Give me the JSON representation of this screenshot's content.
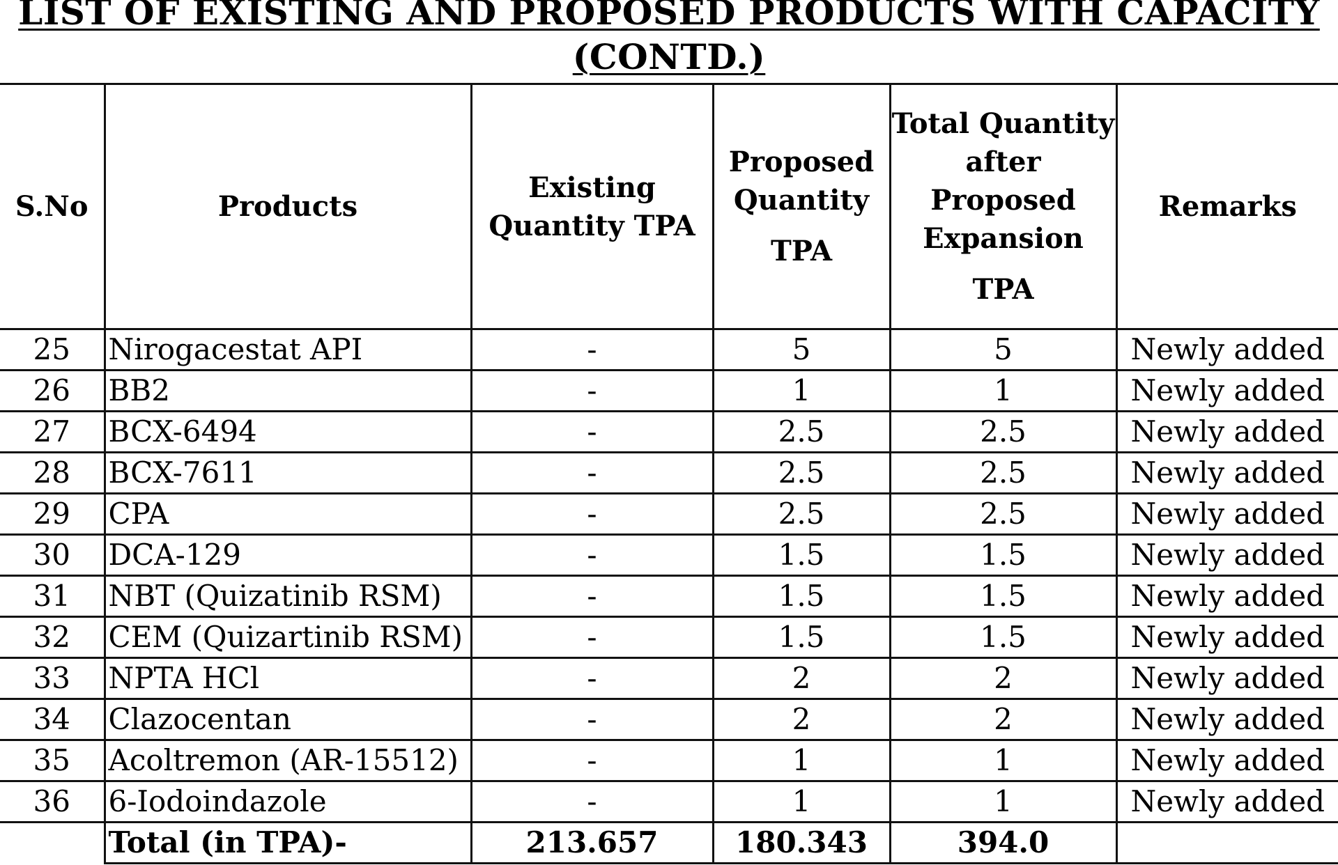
{
  "document": {
    "title_line1": "LIST OF EXISTING AND PROPOSED PRODUCTS WITH CAPACITY",
    "title_line2": "(CONTD.)"
  },
  "table": {
    "headers": {
      "sno": "S.No",
      "products": "Products",
      "existing": "Existing Quantity TPA",
      "proposed_a": "Proposed Quantity",
      "proposed_b": "TPA",
      "total_a": "Total Quantity after Proposed Expansion",
      "total_b": "TPA",
      "remarks": "Remarks"
    },
    "rows": [
      {
        "sno": "25",
        "product": "Nirogacestat API",
        "existing": "-",
        "proposed": "5",
        "total": "5",
        "remarks": "Newly added"
      },
      {
        "sno": "26",
        "product": "BB2",
        "existing": "-",
        "proposed": "1",
        "total": "1",
        "remarks": "Newly added"
      },
      {
        "sno": "27",
        "product": "BCX-6494",
        "existing": "-",
        "proposed": "2.5",
        "total": "2.5",
        "remarks": "Newly added"
      },
      {
        "sno": "28",
        "product": "BCX-7611",
        "existing": "-",
        "proposed": "2.5",
        "total": "2.5",
        "remarks": "Newly added"
      },
      {
        "sno": "29",
        "product": "CPA",
        "existing": "-",
        "proposed": "2.5",
        "total": "2.5",
        "remarks": "Newly added"
      },
      {
        "sno": "30",
        "product": "DCA-129",
        "existing": "-",
        "proposed": "1.5",
        "total": "1.5",
        "remarks": "Newly added"
      },
      {
        "sno": "31",
        "product": "NBT (Quizatinib RSM)",
        "existing": "-",
        "proposed": "1.5",
        "total": "1.5",
        "remarks": "Newly added"
      },
      {
        "sno": "32",
        "product": "CEM (Quizartinib RSM)",
        "existing": "-",
        "proposed": "1.5",
        "total": "1.5",
        "remarks": "Newly added"
      },
      {
        "sno": "33",
        "product": "NPTA HCl",
        "existing": "-",
        "proposed": "2",
        "total": "2",
        "remarks": "Newly added"
      },
      {
        "sno": "34",
        "product": "Clazocentan",
        "existing": "-",
        "proposed": "2",
        "total": "2",
        "remarks": "Newly added"
      },
      {
        "sno": "35",
        "product": "Acoltremon (AR-15512)",
        "existing": "-",
        "proposed": "1",
        "total": "1",
        "remarks": "Newly added"
      },
      {
        "sno": "36",
        "product": "6-Iodoindazole",
        "existing": "-",
        "proposed": "1",
        "total": "1",
        "remarks": "Newly added"
      }
    ],
    "total_row": {
      "label": "Total (in TPA)-",
      "existing": "213.657",
      "proposed": "180.343",
      "total": "394.0",
      "remarks": ""
    }
  }
}
